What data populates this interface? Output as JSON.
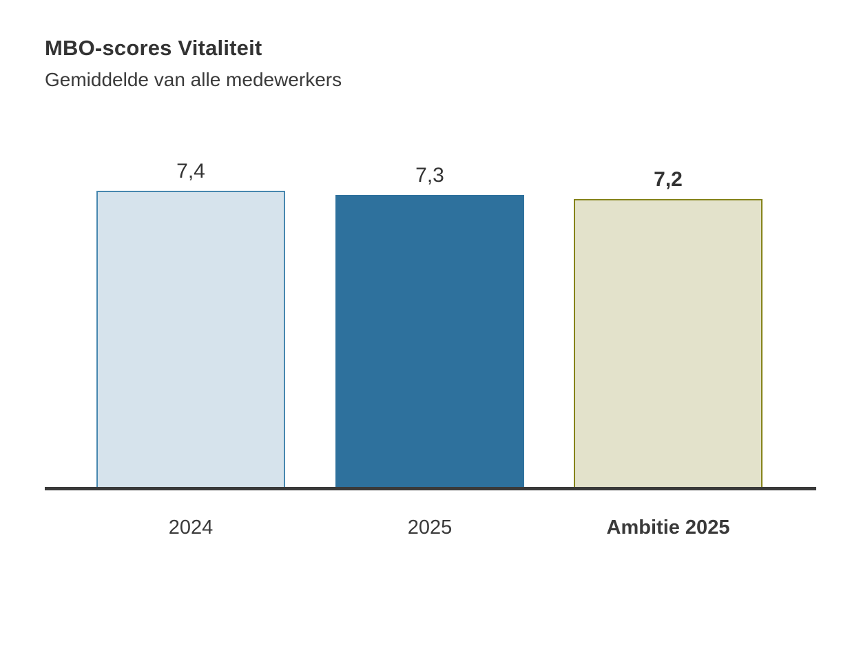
{
  "header": {
    "title": "MBO-scores Vitaliteit",
    "subtitle": "Gemiddelde van alle medewerkers"
  },
  "chart_data": {
    "type": "bar",
    "title": "MBO-scores Vitaliteit",
    "subtitle": "Gemiddelde van alle medewerkers",
    "categories": [
      "2024",
      "2025",
      "Ambitie 2025"
    ],
    "values": [
      7.4,
      7.3,
      7.2
    ],
    "value_labels": [
      "7,4",
      "7,3",
      "7,2"
    ],
    "ylim": [
      0,
      7.4
    ],
    "grid": false,
    "legend": "none",
    "xlabel": "",
    "ylabel": "",
    "bars": [
      {
        "category": "2024",
        "value": 7.4,
        "value_label": "7,4",
        "fill_color": "#d6e3ec",
        "border_color": "#4787af",
        "value_label_bold": false,
        "category_bold": false
      },
      {
        "category": "2025",
        "value": 7.3,
        "value_label": "7,3",
        "fill_color": "#2e719d",
        "border_color": "#2e719d",
        "value_label_bold": false,
        "category_bold": false
      },
      {
        "category": "Ambitie 2025",
        "value": 7.2,
        "value_label": "7,2",
        "fill_color": "#e3e2cb",
        "border_color": "#85831a",
        "value_label_bold": true,
        "category_bold": true
      }
    ],
    "colors": {
      "axis": "#3a3a3a",
      "text": "#333333"
    }
  }
}
